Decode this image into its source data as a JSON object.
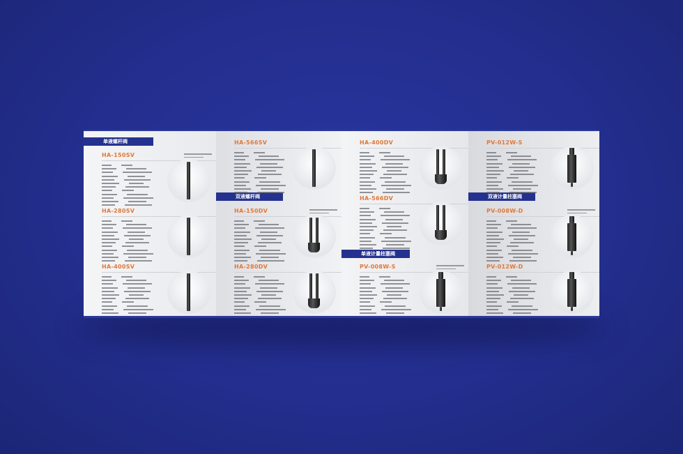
{
  "colors": {
    "background": "#232e8e",
    "section_bar": "#25318f",
    "model_text": "#e0793a"
  },
  "panels": [
    {
      "sections": [
        {
          "label": "单液螺杆阀",
          "pos": "top"
        }
      ],
      "products": [
        {
          "model": "HA-150SV",
          "style": "single"
        },
        {
          "model": "HA-280SV",
          "style": "single"
        },
        {
          "model": "HA-400SV",
          "style": "single"
        }
      ]
    },
    {
      "sections": [
        {
          "label": "双液螺杆阀",
          "pos": "mid"
        }
      ],
      "products": [
        {
          "model": "HA-566SV",
          "style": "single"
        },
        {
          "model": "HA-150DV",
          "style": "double"
        },
        {
          "model": "HA-280DV",
          "style": "double"
        }
      ]
    },
    {
      "sections": [
        {
          "label": "单液计量柱塞阀",
          "pos": "low"
        }
      ],
      "products": [
        {
          "model": "HA-400DV",
          "style": "double"
        },
        {
          "model": "HA-566DV",
          "style": "double"
        },
        {
          "model": "PV-008W-S",
          "style": "plunger"
        }
      ]
    },
    {
      "sections": [
        {
          "label": "双液计量柱塞阀",
          "pos": "mid"
        }
      ],
      "products": [
        {
          "model": "PV-012W-S",
          "style": "plunger"
        },
        {
          "model": "PV-008W-D",
          "style": "plunger"
        },
        {
          "model": "PV-012W-D",
          "style": "plunger"
        }
      ]
    }
  ]
}
